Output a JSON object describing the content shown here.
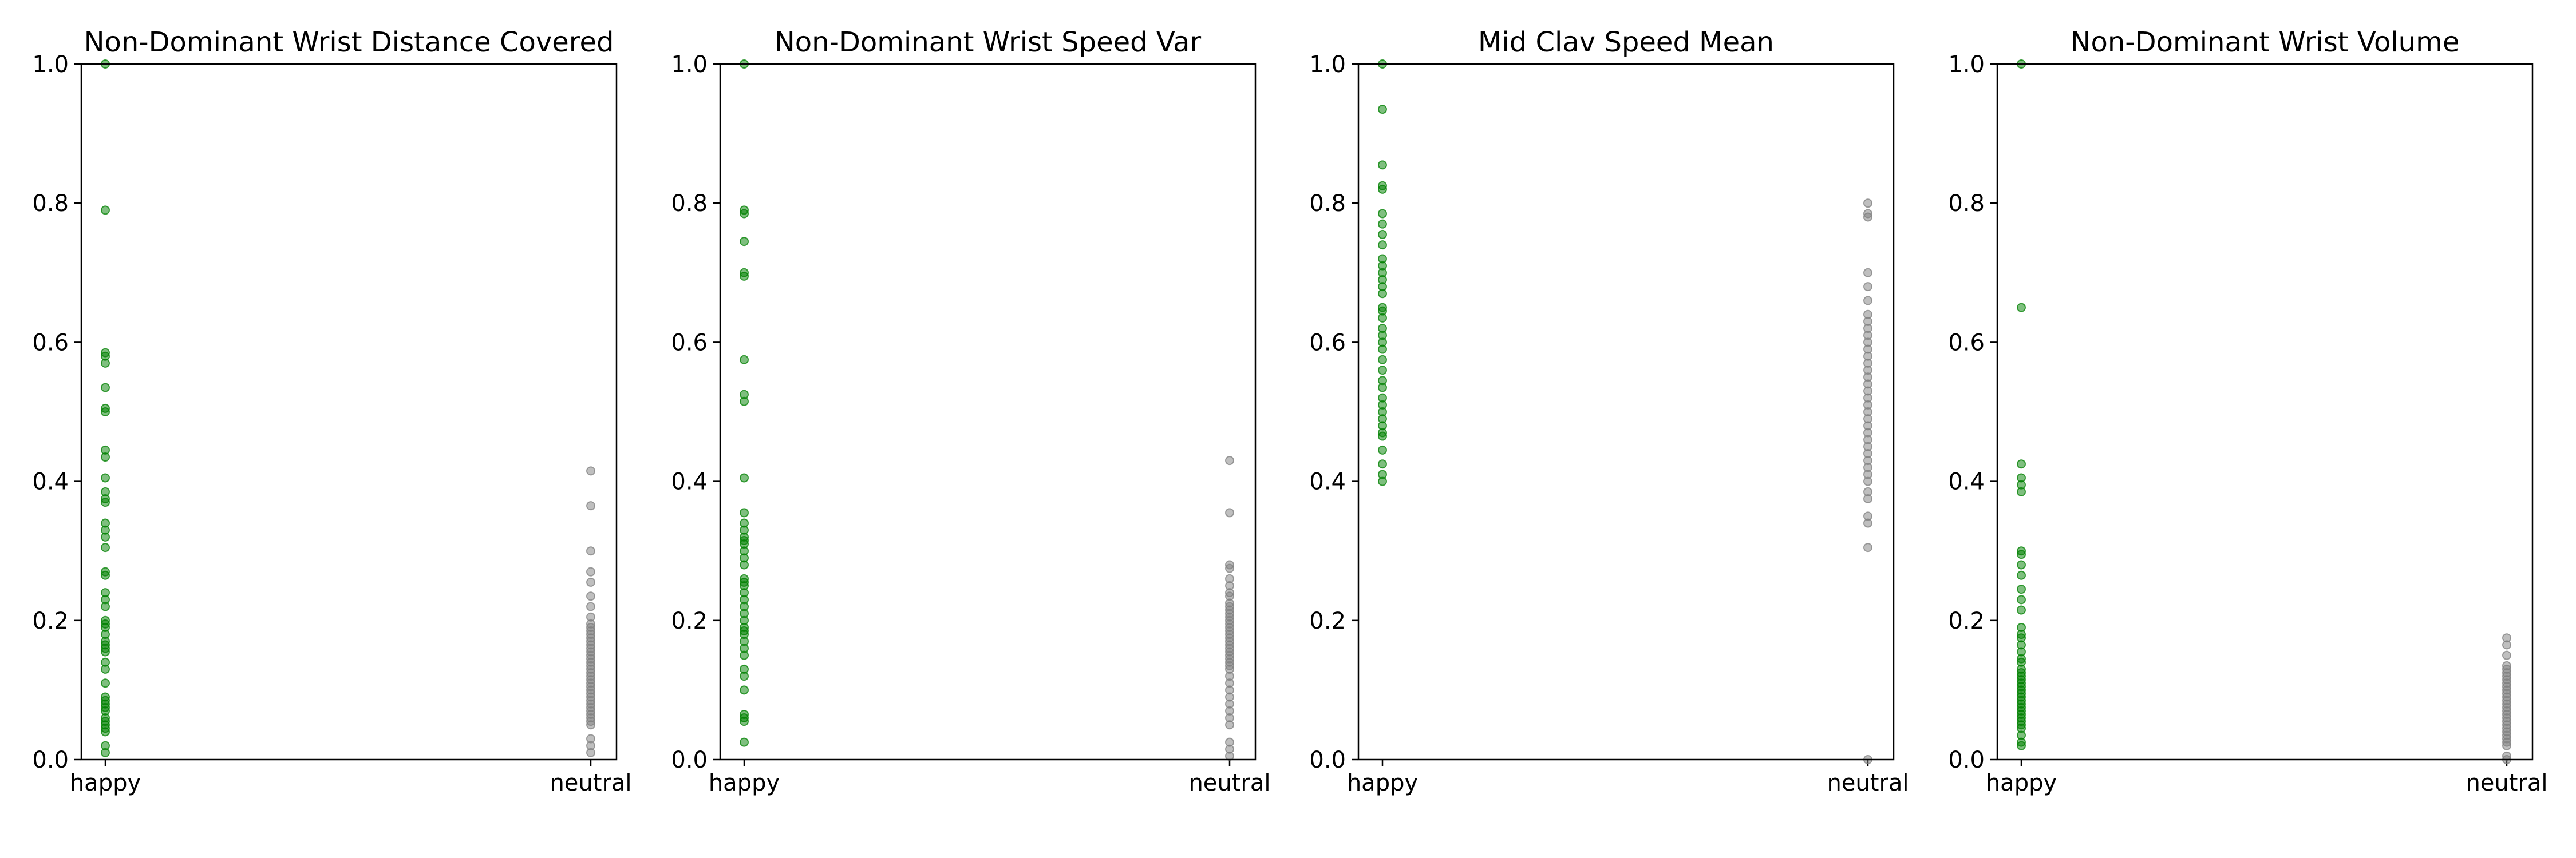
{
  "chart_data": [
    {
      "type": "scatter",
      "title": "Non-Dominant Wrist Distance Covered",
      "categories": [
        "happy",
        "neutral"
      ],
      "ylim": [
        0,
        1
      ],
      "yticks": [
        "0.0",
        "0.2",
        "0.4",
        "0.6",
        "0.8",
        "1.0"
      ],
      "series": [
        {
          "category": "happy",
          "color": "#008000",
          "values": [
            1.0,
            0.79,
            0.585,
            0.58,
            0.57,
            0.535,
            0.505,
            0.5,
            0.445,
            0.435,
            0.405,
            0.385,
            0.375,
            0.37,
            0.34,
            0.33,
            0.32,
            0.305,
            0.27,
            0.265,
            0.24,
            0.23,
            0.22,
            0.2,
            0.195,
            0.19,
            0.18,
            0.17,
            0.165,
            0.16,
            0.155,
            0.14,
            0.13,
            0.11,
            0.09,
            0.085,
            0.08,
            0.075,
            0.07,
            0.06,
            0.055,
            0.05,
            0.045,
            0.04,
            0.02,
            0.01
          ]
        },
        {
          "category": "neutral",
          "color": "#808080",
          "values": [
            0.415,
            0.365,
            0.3,
            0.27,
            0.255,
            0.235,
            0.22,
            0.205,
            0.195,
            0.19,
            0.185,
            0.18,
            0.175,
            0.17,
            0.165,
            0.16,
            0.155,
            0.15,
            0.145,
            0.14,
            0.135,
            0.13,
            0.125,
            0.12,
            0.115,
            0.11,
            0.105,
            0.1,
            0.095,
            0.09,
            0.085,
            0.08,
            0.075,
            0.07,
            0.065,
            0.06,
            0.055,
            0.05,
            0.03,
            0.02,
            0.01
          ]
        }
      ]
    },
    {
      "type": "scatter",
      "title": "Non-Dominant Wrist Speed Var",
      "categories": [
        "happy",
        "neutral"
      ],
      "ylim": [
        0,
        1
      ],
      "yticks": [
        "0.0",
        "0.2",
        "0.4",
        "0.6",
        "0.8",
        "1.0"
      ],
      "series": [
        {
          "category": "happy",
          "color": "#008000",
          "values": [
            1.0,
            0.79,
            0.785,
            0.745,
            0.7,
            0.695,
            0.575,
            0.525,
            0.515,
            0.405,
            0.355,
            0.34,
            0.33,
            0.32,
            0.315,
            0.31,
            0.3,
            0.29,
            0.28,
            0.26,
            0.255,
            0.25,
            0.24,
            0.23,
            0.22,
            0.21,
            0.2,
            0.19,
            0.185,
            0.18,
            0.17,
            0.16,
            0.15,
            0.13,
            0.12,
            0.1,
            0.065,
            0.06,
            0.055,
            0.025
          ]
        },
        {
          "category": "neutral",
          "color": "#808080",
          "values": [
            0.43,
            0.355,
            0.28,
            0.275,
            0.26,
            0.25,
            0.24,
            0.235,
            0.225,
            0.22,
            0.215,
            0.21,
            0.205,
            0.2,
            0.195,
            0.19,
            0.185,
            0.18,
            0.175,
            0.17,
            0.165,
            0.16,
            0.155,
            0.15,
            0.145,
            0.14,
            0.135,
            0.13,
            0.12,
            0.11,
            0.1,
            0.09,
            0.08,
            0.07,
            0.06,
            0.05,
            0.025,
            0.015,
            0.005
          ]
        }
      ]
    },
    {
      "type": "scatter",
      "title": "Mid Clav Speed Mean",
      "categories": [
        "happy",
        "neutral"
      ],
      "ylim": [
        0,
        1
      ],
      "yticks": [
        "0.0",
        "0.2",
        "0.4",
        "0.6",
        "0.8",
        "1.0"
      ],
      "series": [
        {
          "category": "happy",
          "color": "#008000",
          "values": [
            1.0,
            0.935,
            0.855,
            0.825,
            0.82,
            0.785,
            0.77,
            0.755,
            0.74,
            0.72,
            0.71,
            0.7,
            0.69,
            0.68,
            0.67,
            0.65,
            0.645,
            0.635,
            0.62,
            0.61,
            0.6,
            0.59,
            0.575,
            0.56,
            0.545,
            0.535,
            0.52,
            0.51,
            0.5,
            0.49,
            0.48,
            0.47,
            0.465,
            0.445,
            0.425,
            0.41,
            0.4
          ]
        },
        {
          "category": "neutral",
          "color": "#808080",
          "values": [
            0.8,
            0.785,
            0.78,
            0.7,
            0.68,
            0.66,
            0.64,
            0.63,
            0.62,
            0.61,
            0.6,
            0.59,
            0.58,
            0.57,
            0.56,
            0.55,
            0.54,
            0.53,
            0.52,
            0.51,
            0.5,
            0.49,
            0.48,
            0.47,
            0.46,
            0.45,
            0.44,
            0.43,
            0.42,
            0.41,
            0.4,
            0.385,
            0.375,
            0.35,
            0.34,
            0.305,
            0.0
          ]
        }
      ]
    },
    {
      "type": "scatter",
      "title": "Non-Dominant Wrist Volume",
      "categories": [
        "happy",
        "neutral"
      ],
      "ylim": [
        0,
        1
      ],
      "yticks": [
        "0.0",
        "0.2",
        "0.4",
        "0.6",
        "0.8",
        "1.0"
      ],
      "series": [
        {
          "category": "happy",
          "color": "#008000",
          "values": [
            1.0,
            0.65,
            0.425,
            0.405,
            0.395,
            0.385,
            0.3,
            0.295,
            0.28,
            0.265,
            0.245,
            0.23,
            0.215,
            0.19,
            0.18,
            0.175,
            0.165,
            0.155,
            0.145,
            0.14,
            0.13,
            0.125,
            0.12,
            0.115,
            0.11,
            0.105,
            0.1,
            0.095,
            0.09,
            0.085,
            0.08,
            0.075,
            0.07,
            0.065,
            0.06,
            0.055,
            0.05,
            0.045,
            0.035,
            0.025,
            0.02
          ]
        },
        {
          "category": "neutral",
          "color": "#808080",
          "values": [
            0.175,
            0.165,
            0.15,
            0.135,
            0.13,
            0.125,
            0.12,
            0.115,
            0.11,
            0.105,
            0.1,
            0.095,
            0.09,
            0.085,
            0.08,
            0.075,
            0.07,
            0.065,
            0.06,
            0.055,
            0.05,
            0.045,
            0.04,
            0.035,
            0.03,
            0.025,
            0.02,
            0.005,
            0.0
          ]
        }
      ]
    }
  ]
}
